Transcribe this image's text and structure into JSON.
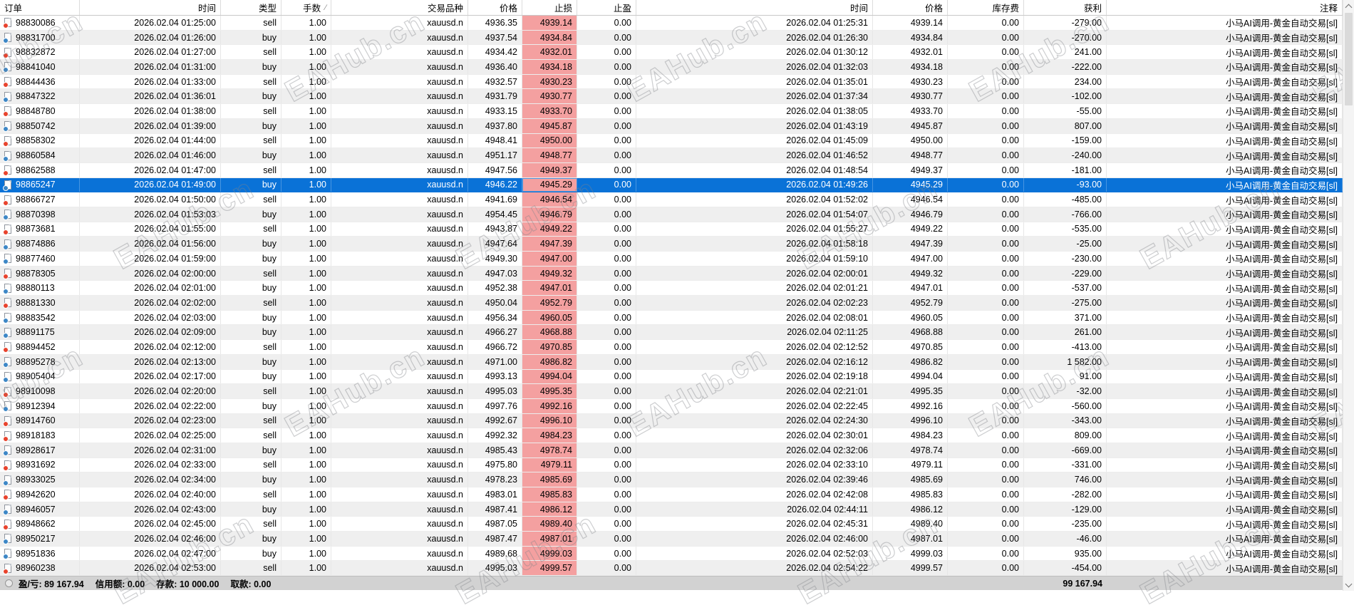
{
  "colors": {
    "selection": "#0a72d7",
    "sl_highlight": "#f4a0a0",
    "sell_dot": "#e8432d",
    "buy_dot": "#3d87c6"
  },
  "watermark": {
    "text": "EAHub.cn"
  },
  "scrollbar": {
    "up_button": "chevron-up",
    "down_button": "chevron-down"
  },
  "table": {
    "columns": [
      {
        "id": "order",
        "label": "订单"
      },
      {
        "id": "open_time",
        "label": "时间"
      },
      {
        "id": "type",
        "label": "类型"
      },
      {
        "id": "lots",
        "label": "手数",
        "sort_indicator": "∕"
      },
      {
        "id": "symbol",
        "label": "交易品种"
      },
      {
        "id": "price",
        "label": "价格"
      },
      {
        "id": "sl",
        "label": "止损"
      },
      {
        "id": "tp",
        "label": "止盈"
      },
      {
        "id": "close_time",
        "label": "时间"
      },
      {
        "id": "close_price",
        "label": "价格"
      },
      {
        "id": "swap",
        "label": "库存费"
      },
      {
        "id": "profit",
        "label": "获利"
      },
      {
        "id": "comment",
        "label": "注释"
      }
    ],
    "selected_order": "98865247",
    "rows": [
      [
        "98830086",
        "2026.02.04 01:25:00",
        "sell",
        "1.00",
        "xauusd.n",
        "4936.35",
        "4939.14",
        "0.00",
        "2026.02.04 01:25:31",
        "4939.14",
        "0.00",
        "-279.00",
        "小马AI调用-黄金自动交易[sl]"
      ],
      [
        "98831700",
        "2026.02.04 01:26:00",
        "buy",
        "1.00",
        "xauusd.n",
        "4937.54",
        "4934.84",
        "0.00",
        "2026.02.04 01:26:30",
        "4934.84",
        "0.00",
        "-270.00",
        "小马AI调用-黄金自动交易[sl]"
      ],
      [
        "98832872",
        "2026.02.04 01:27:00",
        "sell",
        "1.00",
        "xauusd.n",
        "4934.42",
        "4932.01",
        "0.00",
        "2026.02.04 01:30:12",
        "4932.01",
        "0.00",
        "241.00",
        "小马AI调用-黄金自动交易[sl]"
      ],
      [
        "98841040",
        "2026.02.04 01:31:00",
        "buy",
        "1.00",
        "xauusd.n",
        "4936.40",
        "4934.18",
        "0.00",
        "2026.02.04 01:32:03",
        "4934.18",
        "0.00",
        "-222.00",
        "小马AI调用-黄金自动交易[sl]"
      ],
      [
        "98844436",
        "2026.02.04 01:33:00",
        "sell",
        "1.00",
        "xauusd.n",
        "4932.57",
        "4930.23",
        "0.00",
        "2026.02.04 01:35:01",
        "4930.23",
        "0.00",
        "234.00",
        "小马AI调用-黄金自动交易[sl]"
      ],
      [
        "98847322",
        "2026.02.04 01:36:01",
        "buy",
        "1.00",
        "xauusd.n",
        "4931.79",
        "4930.77",
        "0.00",
        "2026.02.04 01:37:34",
        "4930.77",
        "0.00",
        "-102.00",
        "小马AI调用-黄金自动交易[sl]"
      ],
      [
        "98848780",
        "2026.02.04 01:38:00",
        "sell",
        "1.00",
        "xauusd.n",
        "4933.15",
        "4933.70",
        "0.00",
        "2026.02.04 01:38:05",
        "4933.70",
        "0.00",
        "-55.00",
        "小马AI调用-黄金自动交易[sl]"
      ],
      [
        "98850742",
        "2026.02.04 01:39:00",
        "buy",
        "1.00",
        "xauusd.n",
        "4937.80",
        "4945.87",
        "0.00",
        "2026.02.04 01:43:19",
        "4945.87",
        "0.00",
        "807.00",
        "小马AI调用-黄金自动交易[sl]"
      ],
      [
        "98858302",
        "2026.02.04 01:44:00",
        "sell",
        "1.00",
        "xauusd.n",
        "4948.41",
        "4950.00",
        "0.00",
        "2026.02.04 01:45:09",
        "4950.00",
        "0.00",
        "-159.00",
        "小马AI调用-黄金自动交易[sl]"
      ],
      [
        "98860584",
        "2026.02.04 01:46:00",
        "buy",
        "1.00",
        "xauusd.n",
        "4951.17",
        "4948.77",
        "0.00",
        "2026.02.04 01:46:52",
        "4948.77",
        "0.00",
        "-240.00",
        "小马AI调用-黄金自动交易[sl]"
      ],
      [
        "98862588",
        "2026.02.04 01:47:00",
        "sell",
        "1.00",
        "xauusd.n",
        "4947.56",
        "4949.37",
        "0.00",
        "2026.02.04 01:48:54",
        "4949.37",
        "0.00",
        "-181.00",
        "小马AI调用-黄金自动交易[sl]"
      ],
      [
        "98865247",
        "2026.02.04 01:49:00",
        "buy",
        "1.00",
        "xauusd.n",
        "4946.22",
        "4945.29",
        "0.00",
        "2026.02.04 01:49:26",
        "4945.29",
        "0.00",
        "-93.00",
        "小马AI调用-黄金自动交易[sl]"
      ],
      [
        "98866727",
        "2026.02.04 01:50:00",
        "sell",
        "1.00",
        "xauusd.n",
        "4941.69",
        "4946.54",
        "0.00",
        "2026.02.04 01:52:02",
        "4946.54",
        "0.00",
        "-485.00",
        "小马AI调用-黄金自动交易[sl]"
      ],
      [
        "98870398",
        "2026.02.04 01:53:03",
        "buy",
        "1.00",
        "xauusd.n",
        "4954.45",
        "4946.79",
        "0.00",
        "2026.02.04 01:54:07",
        "4946.79",
        "0.00",
        "-766.00",
        "小马AI调用-黄金自动交易[sl]"
      ],
      [
        "98873681",
        "2026.02.04 01:55:00",
        "sell",
        "1.00",
        "xauusd.n",
        "4943.87",
        "4949.22",
        "0.00",
        "2026.02.04 01:55:27",
        "4949.22",
        "0.00",
        "-535.00",
        "小马AI调用-黄金自动交易[sl]"
      ],
      [
        "98874886",
        "2026.02.04 01:56:00",
        "buy",
        "1.00",
        "xauusd.n",
        "4947.64",
        "4947.39",
        "0.00",
        "2026.02.04 01:58:18",
        "4947.39",
        "0.00",
        "-25.00",
        "小马AI调用-黄金自动交易[sl]"
      ],
      [
        "98877460",
        "2026.02.04 01:59:00",
        "buy",
        "1.00",
        "xauusd.n",
        "4949.30",
        "4947.00",
        "0.00",
        "2026.02.04 01:59:10",
        "4947.00",
        "0.00",
        "-230.00",
        "小马AI调用-黄金自动交易[sl]"
      ],
      [
        "98878305",
        "2026.02.04 02:00:00",
        "sell",
        "1.00",
        "xauusd.n",
        "4947.03",
        "4949.32",
        "0.00",
        "2026.02.04 02:00:01",
        "4949.32",
        "0.00",
        "-229.00",
        "小马AI调用-黄金自动交易[sl]"
      ],
      [
        "98880113",
        "2026.02.04 02:01:00",
        "buy",
        "1.00",
        "xauusd.n",
        "4952.38",
        "4947.01",
        "0.00",
        "2026.02.04 02:01:21",
        "4947.01",
        "0.00",
        "-537.00",
        "小马AI调用-黄金自动交易[sl]"
      ],
      [
        "98881330",
        "2026.02.04 02:02:00",
        "sell",
        "1.00",
        "xauusd.n",
        "4950.04",
        "4952.79",
        "0.00",
        "2026.02.04 02:02:23",
        "4952.79",
        "0.00",
        "-275.00",
        "小马AI调用-黄金自动交易[sl]"
      ],
      [
        "98883542",
        "2026.02.04 02:03:00",
        "buy",
        "1.00",
        "xauusd.n",
        "4956.34",
        "4960.05",
        "0.00",
        "2026.02.04 02:08:01",
        "4960.05",
        "0.00",
        "371.00",
        "小马AI调用-黄金自动交易[sl]"
      ],
      [
        "98891175",
        "2026.02.04 02:09:00",
        "buy",
        "1.00",
        "xauusd.n",
        "4966.27",
        "4968.88",
        "0.00",
        "2026.02.04 02:11:25",
        "4968.88",
        "0.00",
        "261.00",
        "小马AI调用-黄金自动交易[sl]"
      ],
      [
        "98894452",
        "2026.02.04 02:12:00",
        "sell",
        "1.00",
        "xauusd.n",
        "4966.72",
        "4970.85",
        "0.00",
        "2026.02.04 02:12:52",
        "4970.85",
        "0.00",
        "-413.00",
        "小马AI调用-黄金自动交易[sl]"
      ],
      [
        "98895278",
        "2026.02.04 02:13:00",
        "buy",
        "1.00",
        "xauusd.n",
        "4971.00",
        "4986.82",
        "0.00",
        "2026.02.04 02:16:12",
        "4986.82",
        "0.00",
        "1 582.00",
        "小马AI调用-黄金自动交易[sl]"
      ],
      [
        "98905404",
        "2026.02.04 02:17:00",
        "buy",
        "1.00",
        "xauusd.n",
        "4993.13",
        "4994.04",
        "0.00",
        "2026.02.04 02:19:18",
        "4994.04",
        "0.00",
        "91.00",
        "小马AI调用-黄金自动交易[sl]"
      ],
      [
        "98910098",
        "2026.02.04 02:20:00",
        "sell",
        "1.00",
        "xauusd.n",
        "4995.03",
        "4995.35",
        "0.00",
        "2026.02.04 02:21:01",
        "4995.35",
        "0.00",
        "-32.00",
        "小马AI调用-黄金自动交易[sl]"
      ],
      [
        "98912394",
        "2026.02.04 02:22:00",
        "buy",
        "1.00",
        "xauusd.n",
        "4997.76",
        "4992.16",
        "0.00",
        "2026.02.04 02:22:45",
        "4992.16",
        "0.00",
        "-560.00",
        "小马AI调用-黄金自动交易[sl]"
      ],
      [
        "98914760",
        "2026.02.04 02:23:00",
        "sell",
        "1.00",
        "xauusd.n",
        "4992.67",
        "4996.10",
        "0.00",
        "2026.02.04 02:24:30",
        "4996.10",
        "0.00",
        "-343.00",
        "小马AI调用-黄金自动交易[sl]"
      ],
      [
        "98918183",
        "2026.02.04 02:25:00",
        "sell",
        "1.00",
        "xauusd.n",
        "4992.32",
        "4984.23",
        "0.00",
        "2026.02.04 02:30:01",
        "4984.23",
        "0.00",
        "809.00",
        "小马AI调用-黄金自动交易[sl]"
      ],
      [
        "98928617",
        "2026.02.04 02:31:00",
        "buy",
        "1.00",
        "xauusd.n",
        "4985.43",
        "4978.74",
        "0.00",
        "2026.02.04 02:32:06",
        "4978.74",
        "0.00",
        "-669.00",
        "小马AI调用-黄金自动交易[sl]"
      ],
      [
        "98931692",
        "2026.02.04 02:33:00",
        "sell",
        "1.00",
        "xauusd.n",
        "4975.80",
        "4979.11",
        "0.00",
        "2026.02.04 02:33:10",
        "4979.11",
        "0.00",
        "-331.00",
        "小马AI调用-黄金自动交易[sl]"
      ],
      [
        "98933025",
        "2026.02.04 02:34:00",
        "buy",
        "1.00",
        "xauusd.n",
        "4978.23",
        "4985.69",
        "0.00",
        "2026.02.04 02:39:46",
        "4985.69",
        "0.00",
        "746.00",
        "小马AI调用-黄金自动交易[sl]"
      ],
      [
        "98942620",
        "2026.02.04 02:40:00",
        "sell",
        "1.00",
        "xauusd.n",
        "4983.01",
        "4985.83",
        "0.00",
        "2026.02.04 02:42:08",
        "4985.83",
        "0.00",
        "-282.00",
        "小马AI调用-黄金自动交易[sl]"
      ],
      [
        "98946057",
        "2026.02.04 02:43:00",
        "buy",
        "1.00",
        "xauusd.n",
        "4987.41",
        "4986.12",
        "0.00",
        "2026.02.04 02:44:11",
        "4986.12",
        "0.00",
        "-129.00",
        "小马AI调用-黄金自动交易[sl]"
      ],
      [
        "98948662",
        "2026.02.04 02:45:00",
        "sell",
        "1.00",
        "xauusd.n",
        "4987.05",
        "4989.40",
        "0.00",
        "2026.02.04 02:45:31",
        "4989.40",
        "0.00",
        "-235.00",
        "小马AI调用-黄金自动交易[sl]"
      ],
      [
        "98950217",
        "2026.02.04 02:46:00",
        "buy",
        "1.00",
        "xauusd.n",
        "4987.47",
        "4987.01",
        "0.00",
        "2026.02.04 02:46:00",
        "4987.01",
        "0.00",
        "-46.00",
        "小马AI调用-黄金自动交易[sl]"
      ],
      [
        "98951836",
        "2026.02.04 02:47:00",
        "buy",
        "1.00",
        "xauusd.n",
        "4989.68",
        "4999.03",
        "0.00",
        "2026.02.04 02:52:03",
        "4999.03",
        "0.00",
        "935.00",
        "小马AI调用-黄金自动交易[sl]"
      ],
      [
        "98960238",
        "2026.02.04 02:53:00",
        "sell",
        "1.00",
        "xauusd.n",
        "4995.03",
        "4999.57",
        "0.00",
        "2026.02.04 02:54:22",
        "4999.57",
        "0.00",
        "-454.00",
        "小马AI调用-黄金自动交易[sl]"
      ]
    ]
  },
  "footer": {
    "summary": [
      {
        "id": "profit_loss",
        "label": "盈/亏:",
        "value": "89 167.94"
      },
      {
        "id": "credit",
        "label": "信用额:",
        "value": "0.00"
      },
      {
        "id": "deposit",
        "label": "存款:",
        "value": "10 000.00"
      },
      {
        "id": "withdrawal",
        "label": "取款:",
        "value": "0.00"
      }
    ],
    "profit_total": "99 167.94"
  }
}
